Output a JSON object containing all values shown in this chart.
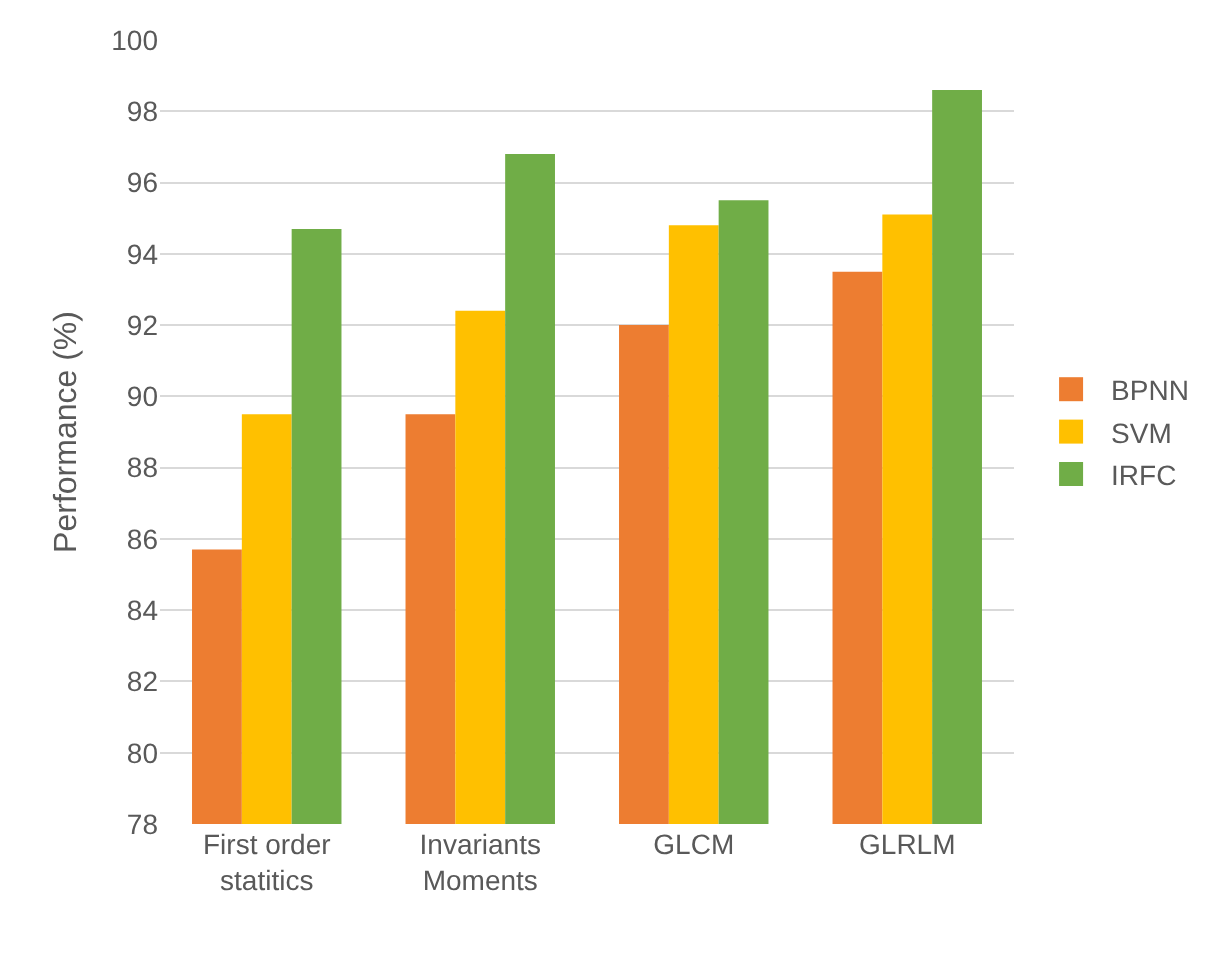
{
  "chart_data": {
    "type": "bar",
    "ylabel": "Performance (%)",
    "categories": [
      "First order statitics",
      "Invariants Moments",
      "GLCM",
      "GLRLM"
    ],
    "series": [
      {
        "name": "BPNN",
        "color": "#ed7d31",
        "values": [
          85.7,
          89.5,
          92.0,
          93.5
        ]
      },
      {
        "name": "SVM",
        "color": "#ffc000",
        "values": [
          89.5,
          92.4,
          94.8,
          95.1
        ]
      },
      {
        "name": "IRFC",
        "color": "#70ad47",
        "values": [
          94.7,
          96.8,
          95.5,
          98.6
        ]
      }
    ],
    "ylim": [
      78,
      100
    ],
    "yticks": [
      78,
      80,
      82,
      84,
      86,
      88,
      90,
      92,
      94,
      96,
      98,
      100
    ],
    "grid": "y",
    "legend": "right"
  }
}
